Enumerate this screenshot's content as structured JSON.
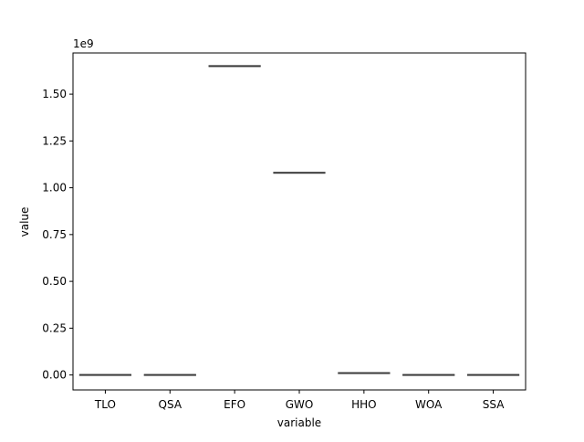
{
  "chart_data": {
    "type": "box",
    "title": "",
    "xlabel": "variable",
    "ylabel": "value",
    "y_multiplier_label": "1e9",
    "y_scale": 1000000000.0,
    "ylim": [
      -0.08,
      1.72
    ],
    "yticks": [
      0.0,
      0.25,
      0.5,
      0.75,
      1.0,
      1.25,
      1.5
    ],
    "ytick_labels": [
      "0.00",
      "0.25",
      "0.50",
      "0.75",
      "1.00",
      "1.25",
      "1.50"
    ],
    "categories": [
      "TLO",
      "QSA",
      "EFO",
      "GWO",
      "HHO",
      "WOA",
      "SSA"
    ],
    "values": [
      0.0,
      0.0,
      1.65,
      1.08,
      0.01,
      0.0,
      0.0
    ],
    "values_units_note": "values in units of 1e9",
    "grid": false,
    "colors": {
      "box": "#3b3b3b",
      "axes": "#000000",
      "background": "#ffffff"
    }
  }
}
